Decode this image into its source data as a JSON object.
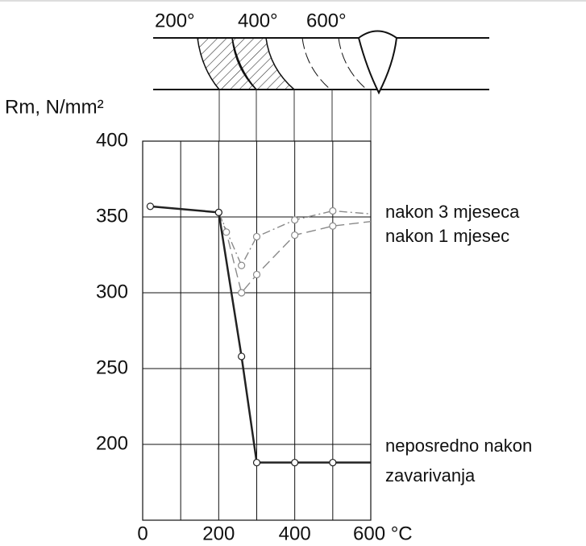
{
  "chart_data": {
    "type": "line",
    "ylabel": "Rm, N/mm²",
    "diagram_labels": [
      "200°",
      "400°",
      "600°"
    ],
    "xlim": [
      0,
      600
    ],
    "ylim": [
      150,
      400
    ],
    "xticks": [
      0,
      200,
      400,
      {
        "value": 600,
        "label": "600 °C"
      }
    ],
    "xgrid": [
      100,
      300,
      500
    ],
    "yticks": [
      200,
      250,
      300,
      350,
      400
    ],
    "grid": true,
    "series": [
      {
        "name": "nakon 3 mjeseca",
        "color": "#8a8a8a",
        "dash": "dashdot",
        "x": [
          200,
          260,
          300,
          400,
          500,
          600
        ],
        "values": [
          353,
          318,
          337,
          348,
          354,
          352
        ]
      },
      {
        "name": "nakon 1 mjesec",
        "color": "#8a8a8a",
        "dash": "dashed",
        "x": [
          200,
          220,
          260,
          300,
          400,
          500,
          600
        ],
        "values": [
          353,
          340,
          300,
          312,
          338,
          344,
          347
        ]
      },
      {
        "name": "neposredno nakon zavarivanja",
        "color": "#222222",
        "dash": "solid",
        "x": [
          20,
          200,
          260,
          300,
          400,
          500,
          600
        ],
        "values": [
          357,
          353,
          258,
          188,
          188,
          188,
          188
        ]
      }
    ]
  }
}
